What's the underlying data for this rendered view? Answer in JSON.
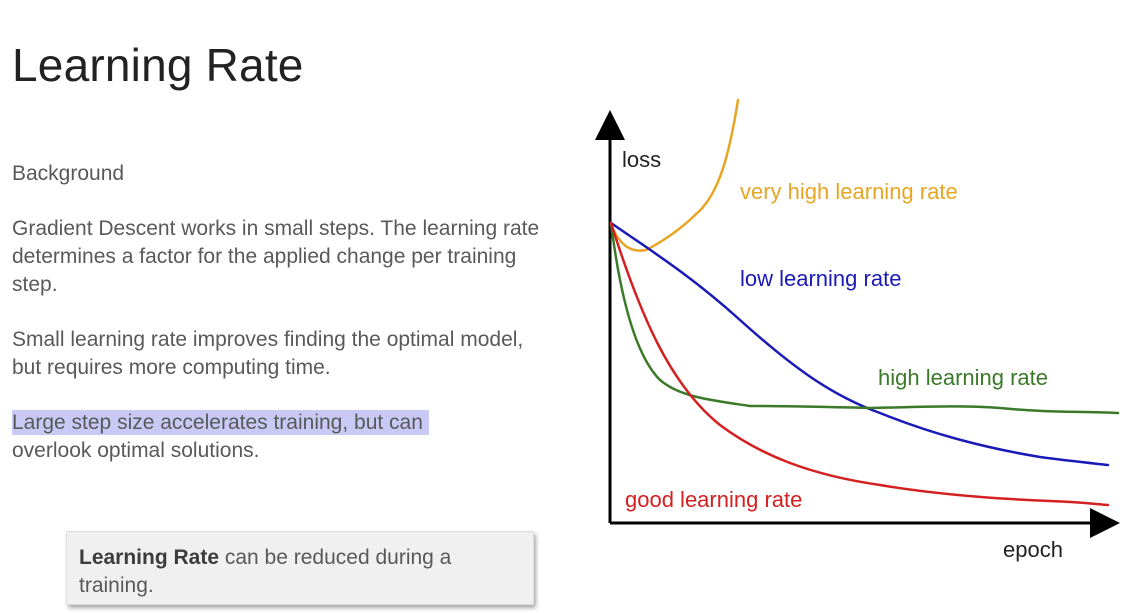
{
  "slide": {
    "title": "Learning Rate"
  },
  "content": {
    "heading": "Background",
    "p1": "Gradient Descent works in small steps. The learning rate determines a factor for the applied change per training step.",
    "p2": "Small learning rate improves finding the optimal model, but requires more computing time.",
    "p3_line1": "Large step size accelerates training, but can",
    "p3_line2": "overlook optimal solutions."
  },
  "callout": {
    "bold": "Learning Rate",
    "rest": " can be reduced during a training."
  },
  "diagram": {
    "y_axis_label": "loss",
    "x_axis_label": "epoch",
    "axis_color": "#000000",
    "curves": [
      {
        "name": "very high learning rate",
        "color": "#e6a623"
      },
      {
        "name": "low learning rate",
        "color": "#1a1ab8"
      },
      {
        "name": "high learning rate",
        "color": "#3a7a28"
      },
      {
        "name": "good learning rate",
        "color": "#d42020"
      }
    ]
  }
}
